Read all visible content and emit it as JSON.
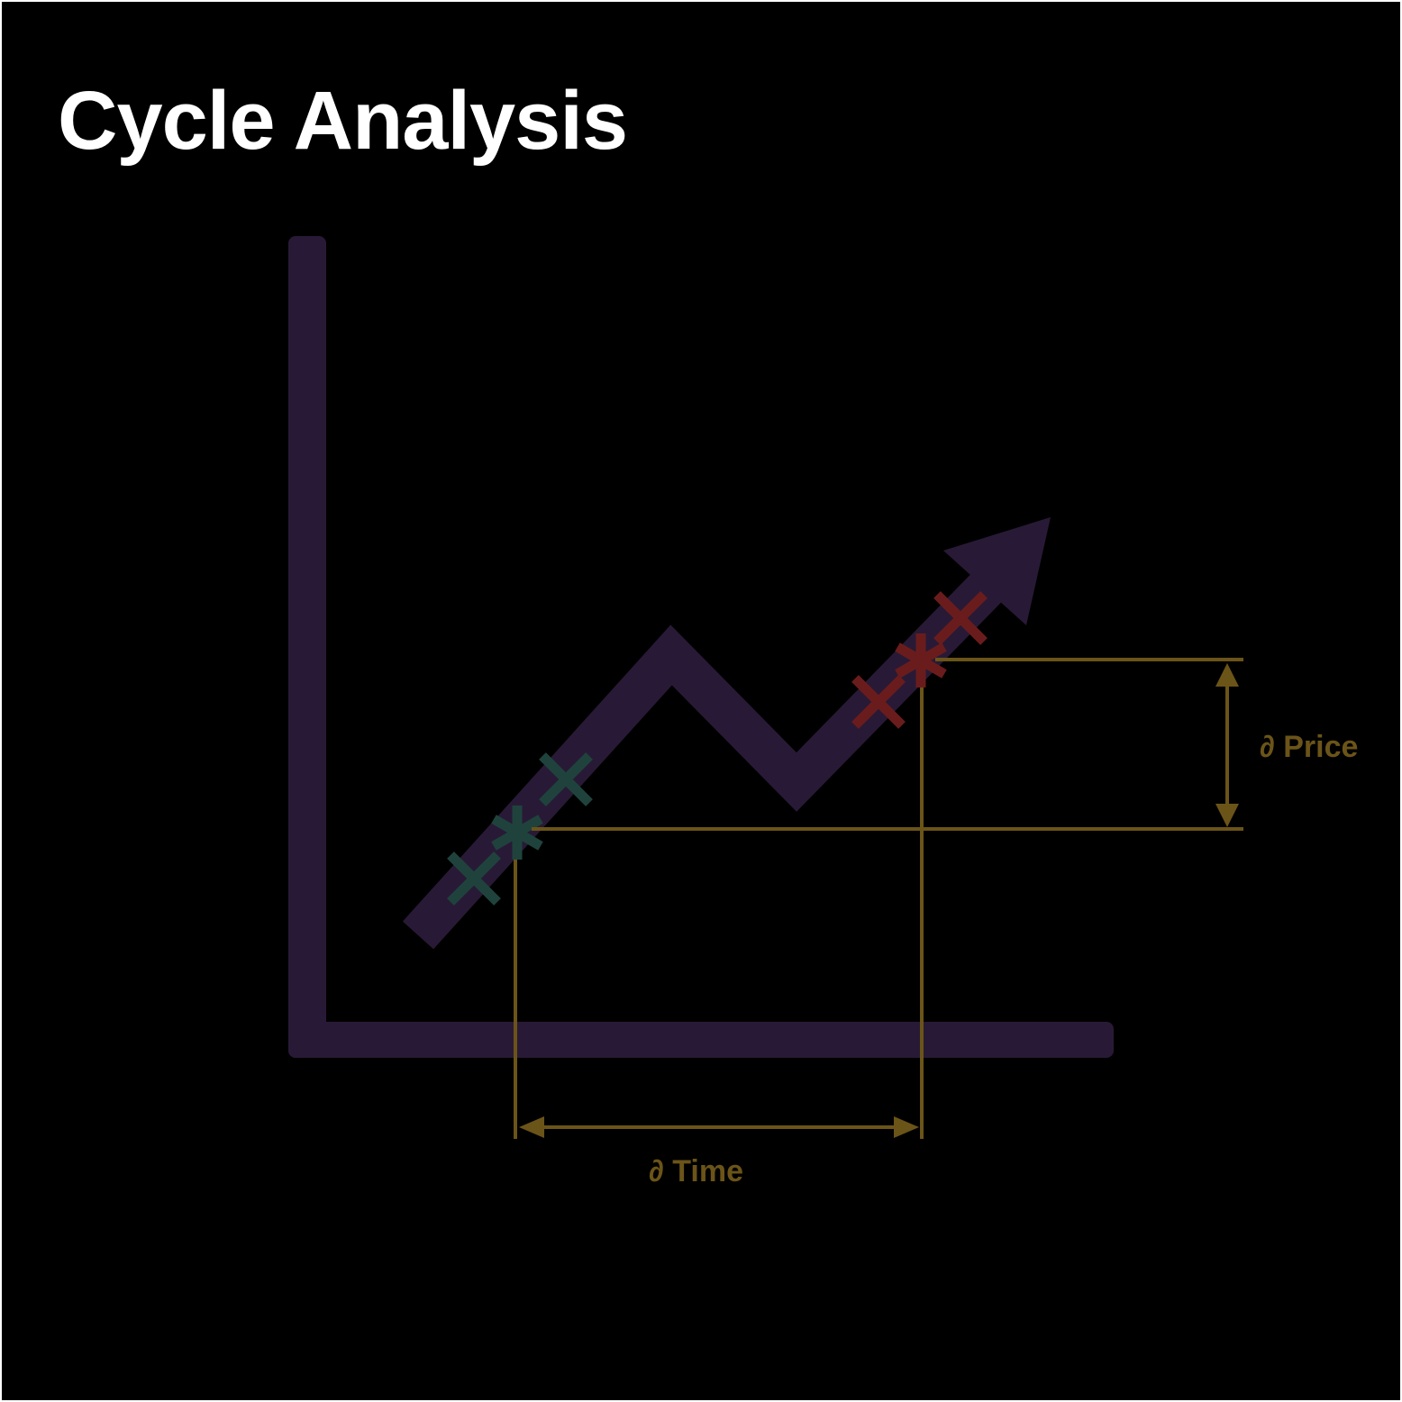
{
  "title": "Cycle Analysis",
  "labels": {
    "price": "∂ Price",
    "time": "∂ Time"
  },
  "colors": {
    "background": "#000000",
    "title": "#ffffff",
    "axes_and_trend": "#281a36",
    "measure": "#6b5418",
    "start_markers": "#1f433c",
    "end_markers": "#6a1c1c"
  },
  "icons": {
    "start_markers": [
      "x-mark",
      "asterisk-mark",
      "x-mark"
    ],
    "end_markers": [
      "x-mark",
      "asterisk-mark",
      "x-mark"
    ]
  }
}
